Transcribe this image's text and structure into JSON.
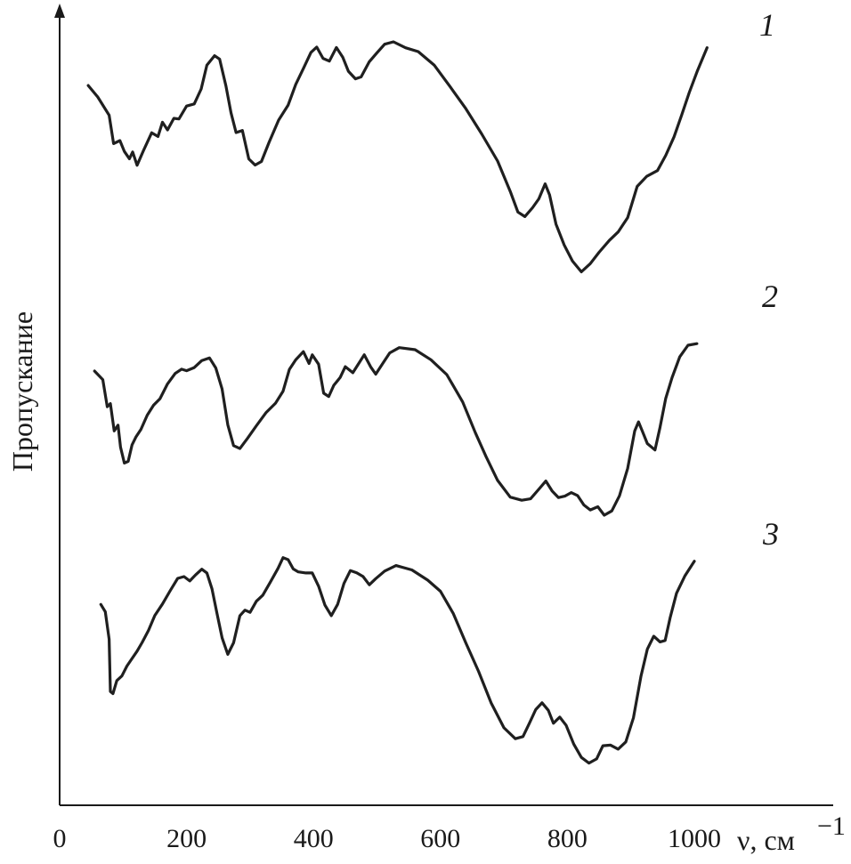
{
  "chart_data": {
    "type": "line",
    "xlabel": "ν, см",
    "xlabel_superscript": "−1",
    "ylabel": "Пропускание",
    "xlim": [
      0,
      1100
    ],
    "x_ticks": [
      0,
      200,
      400,
      600,
      800,
      1000
    ],
    "x_tick_labels": [
      "0",
      "200",
      "400",
      "600",
      "800",
      "1000"
    ],
    "y_axis_ticks": "none",
    "grid": false,
    "legend": "none",
    "stacked_offset": true,
    "series": [
      {
        "name": "1",
        "points": [
          [
            45,
            0.68
          ],
          [
            60,
            0.6
          ],
          [
            78,
            0.45
          ],
          [
            85,
            0.25
          ],
          [
            95,
            0.27
          ],
          [
            102,
            0.18
          ],
          [
            110,
            0.14
          ],
          [
            115,
            0.18
          ],
          [
            122,
            0.08
          ],
          [
            132,
            0.2
          ],
          [
            145,
            0.32
          ],
          [
            155,
            0.3
          ],
          [
            162,
            0.41
          ],
          [
            170,
            0.34
          ],
          [
            180,
            0.44
          ],
          [
            188,
            0.43
          ],
          [
            200,
            0.52
          ],
          [
            212,
            0.55
          ],
          [
            223,
            0.65
          ],
          [
            232,
            0.83
          ],
          [
            244,
            0.91
          ],
          [
            252,
            0.87
          ],
          [
            262,
            0.68
          ],
          [
            270,
            0.48
          ],
          [
            278,
            0.32
          ],
          [
            288,
            0.35
          ],
          [
            298,
            0.13
          ],
          [
            308,
            0.08
          ],
          [
            318,
            0.12
          ],
          [
            330,
            0.25
          ],
          [
            345,
            0.42
          ],
          [
            360,
            0.54
          ],
          [
            372,
            0.68
          ],
          [
            385,
            0.82
          ],
          [
            396,
            0.93
          ],
          [
            405,
            0.96
          ],
          [
            415,
            0.89
          ],
          [
            425,
            0.86
          ],
          [
            436,
            0.96
          ],
          [
            446,
            0.9
          ],
          [
            455,
            0.78
          ],
          [
            466,
            0.73
          ],
          [
            475,
            0.75
          ],
          [
            488,
            0.85
          ],
          [
            500,
            0.93
          ],
          [
            512,
            0.99
          ],
          [
            526,
            1.0
          ],
          [
            545,
            0.97
          ],
          [
            565,
            0.93
          ],
          [
            590,
            0.83
          ],
          [
            615,
            0.68
          ],
          [
            640,
            0.5
          ],
          [
            665,
            0.32
          ],
          [
            690,
            0.12
          ],
          [
            710,
            -0.12
          ],
          [
            722,
            -0.26
          ],
          [
            733,
            -0.3
          ],
          [
            745,
            -0.24
          ],
          [
            755,
            -0.16
          ],
          [
            765,
            -0.06
          ],
          [
            772,
            -0.14
          ],
          [
            782,
            -0.35
          ],
          [
            795,
            -0.52
          ],
          [
            808,
            -0.63
          ],
          [
            822,
            -0.71
          ],
          [
            836,
            -0.66
          ],
          [
            850,
            -0.56
          ],
          [
            866,
            -0.48
          ],
          [
            880,
            -0.42
          ],
          [
            895,
            -0.3
          ],
          [
            910,
            -0.08
          ],
          [
            925,
            0.0
          ],
          [
            942,
            0.05
          ],
          [
            955,
            0.15
          ],
          [
            968,
            0.3
          ],
          [
            980,
            0.46
          ],
          [
            992,
            0.62
          ],
          [
            1005,
            0.8
          ],
          [
            1020,
            0.96
          ]
        ]
      },
      {
        "name": "2",
        "points": [
          [
            55,
            0.8
          ],
          [
            68,
            0.74
          ],
          [
            75,
            0.57
          ],
          [
            80,
            0.6
          ],
          [
            86,
            0.42
          ],
          [
            92,
            0.46
          ],
          [
            96,
            0.33
          ],
          [
            102,
            0.22
          ],
          [
            108,
            0.24
          ],
          [
            114,
            0.34
          ],
          [
            120,
            0.38
          ],
          [
            128,
            0.44
          ],
          [
            138,
            0.52
          ],
          [
            148,
            0.58
          ],
          [
            158,
            0.63
          ],
          [
            170,
            0.71
          ],
          [
            182,
            0.78
          ],
          [
            192,
            0.81
          ],
          [
            200,
            0.79
          ],
          [
            212,
            0.82
          ],
          [
            224,
            0.86
          ],
          [
            236,
            0.87
          ],
          [
            246,
            0.82
          ],
          [
            256,
            0.68
          ],
          [
            265,
            0.46
          ],
          [
            274,
            0.34
          ],
          [
            284,
            0.31
          ],
          [
            296,
            0.38
          ],
          [
            310,
            0.46
          ],
          [
            325,
            0.53
          ],
          [
            340,
            0.6
          ],
          [
            352,
            0.67
          ],
          [
            362,
            0.8
          ],
          [
            372,
            0.87
          ],
          [
            384,
            0.91
          ],
          [
            393,
            0.84
          ],
          [
            398,
            0.9
          ],
          [
            408,
            0.83
          ],
          [
            416,
            0.66
          ],
          [
            424,
            0.64
          ],
          [
            432,
            0.7
          ],
          [
            442,
            0.76
          ],
          [
            450,
            0.82
          ],
          [
            462,
            0.78
          ],
          [
            470,
            0.84
          ],
          [
            480,
            0.89
          ],
          [
            490,
            0.82
          ],
          [
            498,
            0.78
          ],
          [
            510,
            0.84
          ],
          [
            520,
            0.91
          ],
          [
            535,
            0.94
          ],
          [
            560,
            0.92
          ],
          [
            585,
            0.87
          ],
          [
            610,
            0.77
          ],
          [
            635,
            0.6
          ],
          [
            655,
            0.42
          ],
          [
            672,
            0.26
          ],
          [
            690,
            0.12
          ],
          [
            710,
            0.02
          ],
          [
            728,
            -0.01
          ],
          [
            742,
            0.01
          ],
          [
            756,
            0.07
          ],
          [
            766,
            0.11
          ],
          [
            776,
            0.06
          ],
          [
            786,
            0.01
          ],
          [
            796,
            0.02
          ],
          [
            806,
            0.05
          ],
          [
            816,
            0.02
          ],
          [
            826,
            -0.03
          ],
          [
            836,
            -0.06
          ],
          [
            848,
            -0.05
          ],
          [
            858,
            -0.09
          ],
          [
            870,
            -0.07
          ],
          [
            882,
            0.02
          ],
          [
            895,
            0.2
          ],
          [
            906,
            0.42
          ],
          [
            912,
            0.48
          ],
          [
            918,
            0.43
          ],
          [
            926,
            0.34
          ],
          [
            938,
            0.31
          ],
          [
            946,
            0.45
          ],
          [
            955,
            0.62
          ],
          [
            965,
            0.76
          ],
          [
            977,
            0.88
          ],
          [
            990,
            0.95
          ],
          [
            1004,
            0.97
          ]
        ]
      },
      {
        "name": "3",
        "points": [
          [
            65,
            0.77
          ],
          [
            72,
            0.72
          ],
          [
            78,
            0.58
          ],
          [
            80,
            0.3
          ],
          [
            84,
            0.28
          ],
          [
            90,
            0.36
          ],
          [
            98,
            0.38
          ],
          [
            106,
            0.43
          ],
          [
            114,
            0.48
          ],
          [
            122,
            0.51
          ],
          [
            130,
            0.56
          ],
          [
            140,
            0.63
          ],
          [
            150,
            0.7
          ],
          [
            162,
            0.77
          ],
          [
            174,
            0.84
          ],
          [
            186,
            0.9
          ],
          [
            196,
            0.92
          ],
          [
            205,
            0.89
          ],
          [
            214,
            0.92
          ],
          [
            224,
            0.96
          ],
          [
            232,
            0.93
          ],
          [
            240,
            0.85
          ],
          [
            248,
            0.72
          ],
          [
            256,
            0.58
          ],
          [
            265,
            0.5
          ],
          [
            274,
            0.56
          ],
          [
            284,
            0.7
          ],
          [
            292,
            0.74
          ],
          [
            300,
            0.72
          ],
          [
            310,
            0.78
          ],
          [
            320,
            0.82
          ],
          [
            332,
            0.88
          ],
          [
            344,
            0.96
          ],
          [
            352,
            1.02
          ],
          [
            360,
            1.0
          ],
          [
            368,
            0.96
          ],
          [
            376,
            0.94
          ],
          [
            388,
            0.93
          ],
          [
            398,
            0.94
          ],
          [
            408,
            0.86
          ],
          [
            418,
            0.76
          ],
          [
            428,
            0.71
          ],
          [
            438,
            0.76
          ],
          [
            448,
            0.88
          ],
          [
            458,
            0.95
          ],
          [
            468,
            0.93
          ],
          [
            478,
            0.92
          ],
          [
            488,
            0.87
          ],
          [
            498,
            0.9
          ],
          [
            512,
            0.95
          ],
          [
            530,
            0.97
          ],
          [
            555,
            0.95
          ],
          [
            580,
            0.9
          ],
          [
            600,
            0.83
          ],
          [
            620,
            0.72
          ],
          [
            640,
            0.56
          ],
          [
            660,
            0.4
          ],
          [
            680,
            0.24
          ],
          [
            700,
            0.1
          ],
          [
            718,
            0.04
          ],
          [
            730,
            0.06
          ],
          [
            740,
            0.12
          ],
          [
            750,
            0.2
          ],
          [
            760,
            0.24
          ],
          [
            770,
            0.19
          ],
          [
            778,
            0.13
          ],
          [
            788,
            0.16
          ],
          [
            798,
            0.11
          ],
          [
            810,
            0.02
          ],
          [
            822,
            -0.06
          ],
          [
            834,
            -0.09
          ],
          [
            846,
            -0.06
          ],
          [
            856,
            0.0
          ],
          [
            868,
            0.01
          ],
          [
            880,
            -0.01
          ],
          [
            892,
            0.02
          ],
          [
            904,
            0.16
          ],
          [
            916,
            0.38
          ],
          [
            926,
            0.52
          ],
          [
            936,
            0.6
          ],
          [
            946,
            0.56
          ],
          [
            954,
            0.57
          ],
          [
            962,
            0.7
          ],
          [
            972,
            0.82
          ],
          [
            985,
            0.92
          ],
          [
            1000,
            1.0
          ]
        ]
      }
    ]
  }
}
